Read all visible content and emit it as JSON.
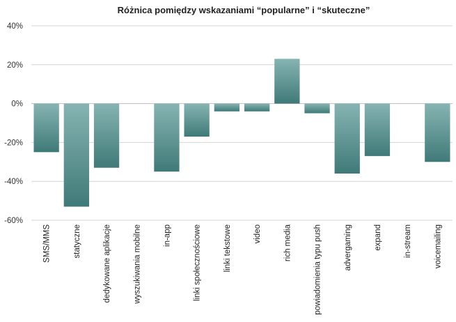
{
  "chart_data": {
    "type": "bar",
    "title": "Różnica pomiędzy wskazaniami “popularne” i “skuteczne”",
    "xlabel": "",
    "ylabel": "",
    "ylim": [
      -60,
      40
    ],
    "yticks": [
      40,
      20,
      0,
      -20,
      -40,
      -60
    ],
    "ytick_labels": [
      "40%",
      "20%",
      "0%",
      "-20%",
      "-40%",
      "-60%"
    ],
    "grid": true,
    "bar_color_top": "#86b4b2",
    "bar_color_bottom": "#3f7a78",
    "categories": [
      "SMS/MMS",
      "statyczne",
      "dedykowane aplikacje",
      "wyszukiwania mobilne",
      "in-app",
      "linki społecznościowe",
      "linki tekstowe",
      "video",
      "rich media",
      "powiadomienia typu push",
      "advergaming",
      "expand",
      "in-stream",
      "voicemailing"
    ],
    "values": [
      -25,
      -53,
      -33,
      0,
      -35,
      -17,
      -4,
      -4,
      23,
      -5,
      -36,
      -27,
      0,
      -30
    ]
  }
}
